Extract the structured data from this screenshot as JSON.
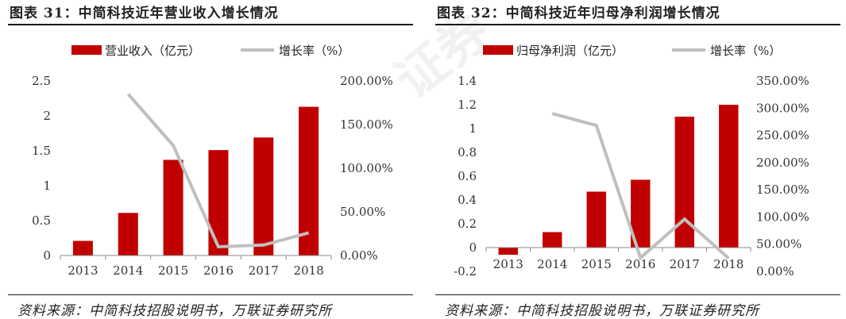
{
  "chart_data": [
    {
      "type": "bar+line",
      "figure_label": "图表 31：中简科技近年营业收入增长情况",
      "categories": [
        "2013",
        "2014",
        "2015",
        "2016",
        "2017",
        "2018"
      ],
      "bar_series": {
        "name": "营业收入（亿元）",
        "values": [
          0.21,
          0.61,
          1.37,
          1.51,
          1.69,
          2.13
        ],
        "color": "#c00000"
      },
      "line_series": {
        "name": "增长率（%）",
        "values": [
          null,
          1.85,
          1.26,
          0.1,
          0.12,
          0.26
        ],
        "color": "#bfbfbf"
      },
      "y_left": {
        "min": 0,
        "max": 2.5,
        "ticks": [
          "0",
          "0.5",
          "1",
          "1.5",
          "2",
          "2.5"
        ]
      },
      "y_right": {
        "min": 0,
        "max": 2.0,
        "ticks": [
          "0.00%",
          "50.00%",
          "100.00%",
          "150.00%",
          "200.00%"
        ]
      },
      "legend": "top",
      "grid": false,
      "source": "资料来源：中简科技招股说明书，万联证券研究所"
    },
    {
      "type": "bar+line",
      "figure_label": "图表 32：中简科技近年归母净利润增长情况",
      "categories": [
        "2013",
        "2014",
        "2015",
        "2016",
        "2017",
        "2018"
      ],
      "bar_series": {
        "name": "归母净利润（亿元）",
        "values": [
          -0.06,
          0.13,
          0.47,
          0.57,
          1.1,
          1.2
        ],
        "color": "#c00000"
      },
      "line_series": {
        "name": "增长率（%）",
        "values": [
          null,
          2.9,
          2.68,
          0.25,
          0.96,
          0.24
        ],
        "color": "#bfbfbf"
      },
      "y_left": {
        "min": -0.2,
        "max": 1.4,
        "ticks": [
          "-0.2",
          "0",
          "0.2",
          "0.4",
          "0.6",
          "0.8",
          "1",
          "1.2",
          "1.4"
        ]
      },
      "y_right": {
        "min": 0,
        "max": 3.5,
        "ticks": [
          "0.00%",
          "50.00%",
          "100.00%",
          "150.00%",
          "200.00%",
          "250.00%",
          "300.00%",
          "350.00%"
        ]
      },
      "legend": "top",
      "grid": false,
      "source": "资料来源：中简科技招股说明书，万联证券研究所"
    }
  ],
  "watermark": "证券"
}
